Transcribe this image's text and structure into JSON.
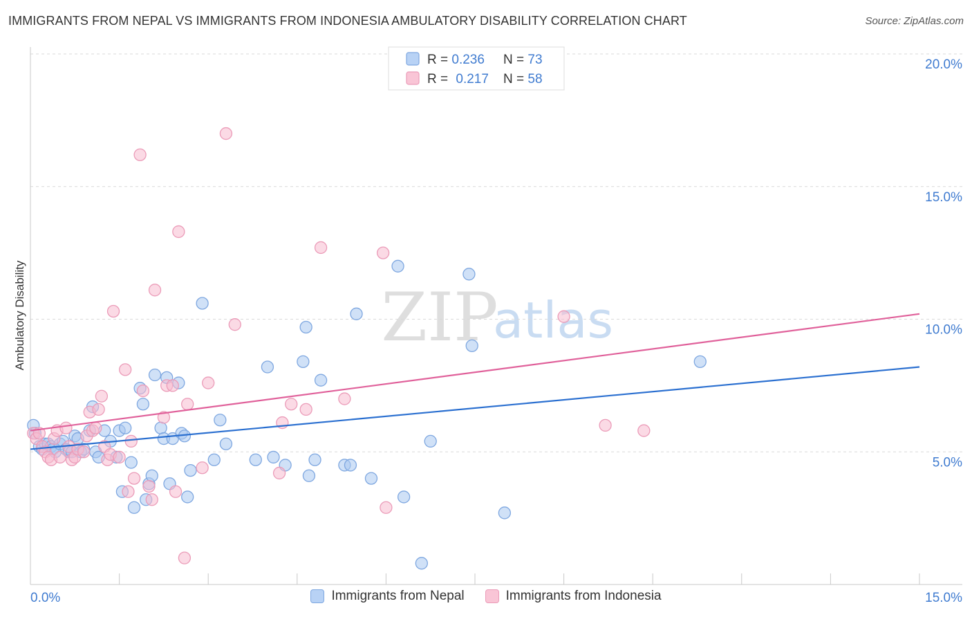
{
  "title": "IMMIGRANTS FROM NEPAL VS IMMIGRANTS FROM INDONESIA AMBULATORY DISABILITY CORRELATION CHART",
  "source": "Source: ZipAtlas.com",
  "watermark": {
    "zip": "ZIP",
    "atlas": "atlas"
  },
  "colors": {
    "blue_fill": "#a9c8f0",
    "blue_stroke": "#7ea7e0",
    "blue_line": "#2a6fd0",
    "pink_fill": "#f7bcd0",
    "pink_stroke": "#eb9bb8",
    "pink_line": "#e0609a",
    "axis_label": "#3f7bd0",
    "grid": "#d9d9d9"
  },
  "legend_top": {
    "rows": [
      {
        "r_label": "R = ",
        "r_value": "0.236",
        "n_label": "N = ",
        "n_value": "73"
      },
      {
        "r_label": "R = ",
        "r_value": "0.217",
        "n_label": "N = ",
        "n_value": "58"
      }
    ]
  },
  "legend_bottom": [
    {
      "label": "Immigrants from Nepal"
    },
    {
      "label": "Immigrants from Indonesia"
    }
  ],
  "chart_data": {
    "type": "scatter",
    "title": "IMMIGRANTS FROM NEPAL VS IMMIGRANTS FROM INDONESIA AMBULATORY DISABILITY CORRELATION CHART",
    "xlabel": "",
    "ylabel": "Ambulatory Disability",
    "xlim": [
      0,
      15
    ],
    "ylim": [
      0,
      20
    ],
    "x_tick_labels": [
      {
        "value": 0,
        "label": "0.0%"
      },
      {
        "value": 15,
        "label": "15.0%"
      }
    ],
    "y_tick_labels": [
      {
        "value": 5,
        "label": "5.0%"
      },
      {
        "value": 10,
        "label": "10.0%"
      },
      {
        "value": 15,
        "label": "15.0%"
      },
      {
        "value": 20,
        "label": "20.0%"
      }
    ],
    "legend": "top-center",
    "series": [
      {
        "name": "Immigrants from Nepal",
        "R": 0.236,
        "N": 73,
        "trend": {
          "x": [
            0,
            15
          ],
          "y": [
            5.1,
            8.2
          ]
        },
        "points": [
          [
            0.05,
            6.0
          ],
          [
            0.08,
            5.7
          ],
          [
            0.15,
            5.2
          ],
          [
            0.2,
            5.1
          ],
          [
            0.25,
            5.3
          ],
          [
            0.3,
            5.3
          ],
          [
            0.35,
            5.2
          ],
          [
            0.38,
            5.1
          ],
          [
            0.42,
            5.0
          ],
          [
            0.5,
            5.3
          ],
          [
            0.55,
            5.4
          ],
          [
            0.6,
            5.1
          ],
          [
            0.65,
            5.0
          ],
          [
            0.7,
            5.0
          ],
          [
            0.75,
            5.6
          ],
          [
            0.8,
            5.5
          ],
          [
            0.85,
            5.0
          ],
          [
            0.9,
            5.1
          ],
          [
            1.0,
            5.8
          ],
          [
            1.05,
            6.7
          ],
          [
            1.1,
            5.0
          ],
          [
            1.15,
            4.8
          ],
          [
            1.25,
            5.8
          ],
          [
            1.35,
            5.4
          ],
          [
            1.45,
            4.8
          ],
          [
            1.5,
            5.8
          ],
          [
            1.55,
            3.5
          ],
          [
            1.6,
            5.9
          ],
          [
            1.7,
            4.6
          ],
          [
            1.75,
            2.9
          ],
          [
            1.85,
            7.4
          ],
          [
            1.9,
            6.8
          ],
          [
            1.95,
            3.2
          ],
          [
            2.0,
            3.8
          ],
          [
            2.05,
            4.1
          ],
          [
            2.1,
            7.9
          ],
          [
            2.2,
            5.9
          ],
          [
            2.25,
            5.5
          ],
          [
            2.3,
            7.8
          ],
          [
            2.35,
            3.8
          ],
          [
            2.4,
            5.5
          ],
          [
            2.5,
            7.6
          ],
          [
            2.55,
            5.7
          ],
          [
            2.6,
            5.6
          ],
          [
            2.65,
            3.3
          ],
          [
            2.7,
            4.3
          ],
          [
            2.9,
            10.6
          ],
          [
            3.1,
            4.7
          ],
          [
            3.2,
            6.2
          ],
          [
            3.3,
            5.3
          ],
          [
            3.8,
            4.7
          ],
          [
            4.0,
            8.2
          ],
          [
            4.1,
            4.8
          ],
          [
            4.3,
            4.5
          ],
          [
            4.6,
            8.4
          ],
          [
            4.65,
            9.7
          ],
          [
            4.7,
            4.1
          ],
          [
            4.8,
            4.7
          ],
          [
            4.9,
            7.7
          ],
          [
            5.3,
            4.5
          ],
          [
            5.4,
            4.5
          ],
          [
            5.5,
            10.2
          ],
          [
            5.75,
            4.0
          ],
          [
            6.2,
            12.0
          ],
          [
            6.3,
            3.3
          ],
          [
            6.6,
            0.8
          ],
          [
            6.75,
            5.4
          ],
          [
            7.4,
            11.7
          ],
          [
            7.45,
            9.0
          ],
          [
            8.0,
            2.7
          ],
          [
            11.3,
            8.4
          ]
        ]
      },
      {
        "name": "Immigrants from Indonesia",
        "R": 0.217,
        "N": 58,
        "trend": {
          "x": [
            0,
            15
          ],
          "y": [
            5.8,
            10.2
          ]
        },
        "points": [
          [
            0.05,
            5.7
          ],
          [
            0.1,
            5.5
          ],
          [
            0.15,
            5.7
          ],
          [
            0.2,
            5.2
          ],
          [
            0.25,
            5.0
          ],
          [
            0.3,
            4.8
          ],
          [
            0.35,
            4.7
          ],
          [
            0.4,
            5.5
          ],
          [
            0.45,
            5.8
          ],
          [
            0.5,
            4.8
          ],
          [
            0.6,
            5.9
          ],
          [
            0.65,
            5.2
          ],
          [
            0.7,
            4.7
          ],
          [
            0.75,
            4.8
          ],
          [
            0.8,
            5.1
          ],
          [
            0.9,
            5.0
          ],
          [
            0.95,
            5.6
          ],
          [
            1.0,
            6.5
          ],
          [
            1.05,
            5.8
          ],
          [
            1.1,
            5.9
          ],
          [
            1.15,
            6.6
          ],
          [
            1.2,
            7.1
          ],
          [
            1.25,
            5.2
          ],
          [
            1.3,
            4.7
          ],
          [
            1.35,
            4.9
          ],
          [
            1.4,
            10.3
          ],
          [
            1.5,
            4.8
          ],
          [
            1.6,
            8.1
          ],
          [
            1.65,
            3.5
          ],
          [
            1.7,
            5.4
          ],
          [
            1.75,
            4.0
          ],
          [
            1.85,
            16.2
          ],
          [
            1.9,
            7.3
          ],
          [
            2.0,
            3.7
          ],
          [
            2.05,
            3.2
          ],
          [
            2.1,
            11.1
          ],
          [
            2.25,
            6.3
          ],
          [
            2.3,
            7.5
          ],
          [
            2.4,
            7.5
          ],
          [
            2.45,
            3.5
          ],
          [
            2.5,
            13.3
          ],
          [
            2.6,
            1.0
          ],
          [
            2.65,
            6.8
          ],
          [
            2.9,
            4.4
          ],
          [
            3.0,
            7.6
          ],
          [
            3.3,
            17.0
          ],
          [
            3.45,
            9.8
          ],
          [
            4.2,
            4.2
          ],
          [
            4.25,
            6.1
          ],
          [
            4.4,
            6.8
          ],
          [
            4.65,
            6.6
          ],
          [
            4.9,
            12.7
          ],
          [
            5.3,
            7.0
          ],
          [
            5.95,
            12.5
          ],
          [
            6.0,
            2.9
          ],
          [
            9.0,
            10.1
          ],
          [
            9.7,
            6.0
          ],
          [
            10.35,
            5.8
          ]
        ]
      }
    ]
  }
}
